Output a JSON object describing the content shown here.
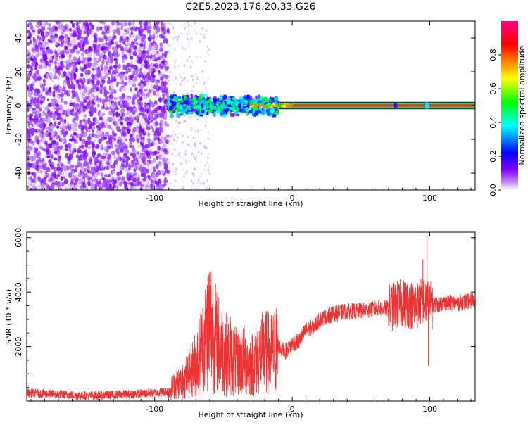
{
  "title": "C2E5.2023.176.20.33.G26",
  "chart_data": [
    {
      "type": "heatmap",
      "xlabel": "Height of straight line (km)",
      "ylabel": "Frequency (Hz)",
      "xlim": [
        -193,
        133
      ],
      "ylim": [
        -50,
        50
      ],
      "xticks": [
        -100,
        0,
        100
      ],
      "xtick_labels": [
        "-100",
        "0",
        "100"
      ],
      "yticks": [
        -40,
        -20,
        0,
        20,
        40
      ],
      "ytick_labels": [
        "-40",
        "-20",
        "0",
        "20",
        "40"
      ],
      "colorbar": {
        "label": "Normalized spectral amplitude",
        "range": [
          0,
          1
        ],
        "ticks": [
          0.0,
          0.2,
          0.4,
          0.6,
          0.8
        ],
        "tick_labels": [
          "0.0",
          "0.2",
          "0.4",
          "0.6",
          "0.8"
        ],
        "colors": [
          "#ffffff",
          "#8000ff",
          "#0000ff",
          "#00ffff",
          "#00ff00",
          "#ffff00",
          "#ff8000",
          "#ff0000",
          "#ff0080"
        ]
      },
      "regions": [
        {
          "x": [
            -193,
            -90
          ],
          "freq_spread": 50,
          "amplitude": 0.05,
          "description": "noise"
        },
        {
          "x": [
            -90,
            -10
          ],
          "freq_spread": 4,
          "amplitude": 0.3
        },
        {
          "x": [
            -10,
            133
          ],
          "freq_spread": 1,
          "amplitude": 0.95
        }
      ],
      "grid": false
    },
    {
      "type": "line",
      "xlabel": "Height of straight line (km)",
      "ylabel": "SNR (10 * v/v)",
      "xlim": [
        -193,
        133
      ],
      "ylim": [
        0,
        6200
      ],
      "xticks": [
        -100,
        0,
        100
      ],
      "xtick_labels": [
        "-100",
        "0",
        "100"
      ],
      "yticks": [
        2000,
        4000,
        6000
      ],
      "ytick_labels": [
        "2000",
        "4000",
        "6000"
      ],
      "color": "#ee3333",
      "series": [
        {
          "name": "",
          "x": [
            -193,
            -170,
            -150,
            -120,
            -100,
            -90,
            -85,
            -80,
            -75,
            -70,
            -65,
            -60,
            -55,
            -50,
            -45,
            -40,
            -35,
            -30,
            -25,
            -20,
            -15,
            -10,
            -5,
            0,
            5,
            10,
            15,
            20,
            30,
            40,
            50,
            60,
            70,
            80,
            90,
            95,
            100,
            110,
            120,
            133
          ],
          "y": [
            300,
            250,
            200,
            250,
            300,
            350,
            600,
            700,
            1000,
            1400,
            2000,
            3000,
            2200,
            1800,
            1600,
            1400,
            1500,
            1300,
            1600,
            1800,
            1700,
            2000,
            1800,
            2100,
            2200,
            2600,
            2700,
            3000,
            3200,
            3300,
            3300,
            3400,
            3400,
            3600,
            3500,
            3700,
            3500,
            3600,
            3600,
            3700
          ],
          "spikes": [
            [
              -63,
              3400
            ],
            [
              -45,
              3100
            ],
            [
              -20,
              2500
            ],
            [
              95,
              5200
            ],
            [
              98,
              6200
            ],
            [
              99,
              1300
            ]
          ]
        }
      ],
      "grid": false
    }
  ]
}
